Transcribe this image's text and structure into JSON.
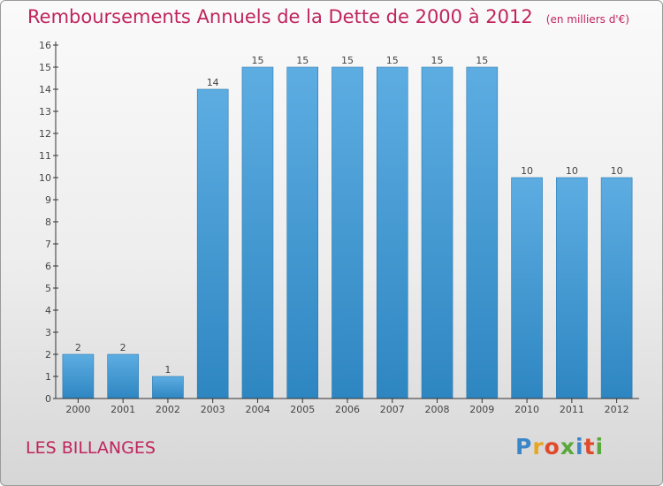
{
  "header": {
    "title": "Remboursements Annuels de la Dette de 2000 à 2012",
    "subtitle": "(en milliers d'€)"
  },
  "footer": {
    "location": "LES BILLANGES",
    "logo_text": "Proxiti",
    "logo_colors": [
      "#3a86c8",
      "#e8a520",
      "#e04a2a",
      "#5aa83a",
      "#3a86c8",
      "#e04a2a",
      "#5aa83a"
    ]
  },
  "colors": {
    "bar_top": "#5dade2",
    "bar_bottom": "#2e86c1",
    "axis": "#333333",
    "text": "#444444"
  },
  "chart_data": {
    "type": "bar",
    "categories": [
      "2000",
      "2001",
      "2002",
      "2003",
      "2004",
      "2005",
      "2006",
      "2007",
      "2008",
      "2009",
      "2010",
      "2011",
      "2012"
    ],
    "values": [
      2,
      2,
      1,
      14,
      15,
      15,
      15,
      15,
      15,
      15,
      10,
      10,
      10
    ],
    "title": "Remboursements Annuels de la Dette de 2000 à 2012",
    "xlabel": "",
    "ylabel": "",
    "ylim": [
      0,
      16
    ],
    "yticks": [
      0,
      1,
      2,
      3,
      4,
      5,
      6,
      7,
      8,
      9,
      10,
      11,
      12,
      13,
      14,
      15,
      16
    ],
    "grid": false,
    "data_labels": true
  }
}
